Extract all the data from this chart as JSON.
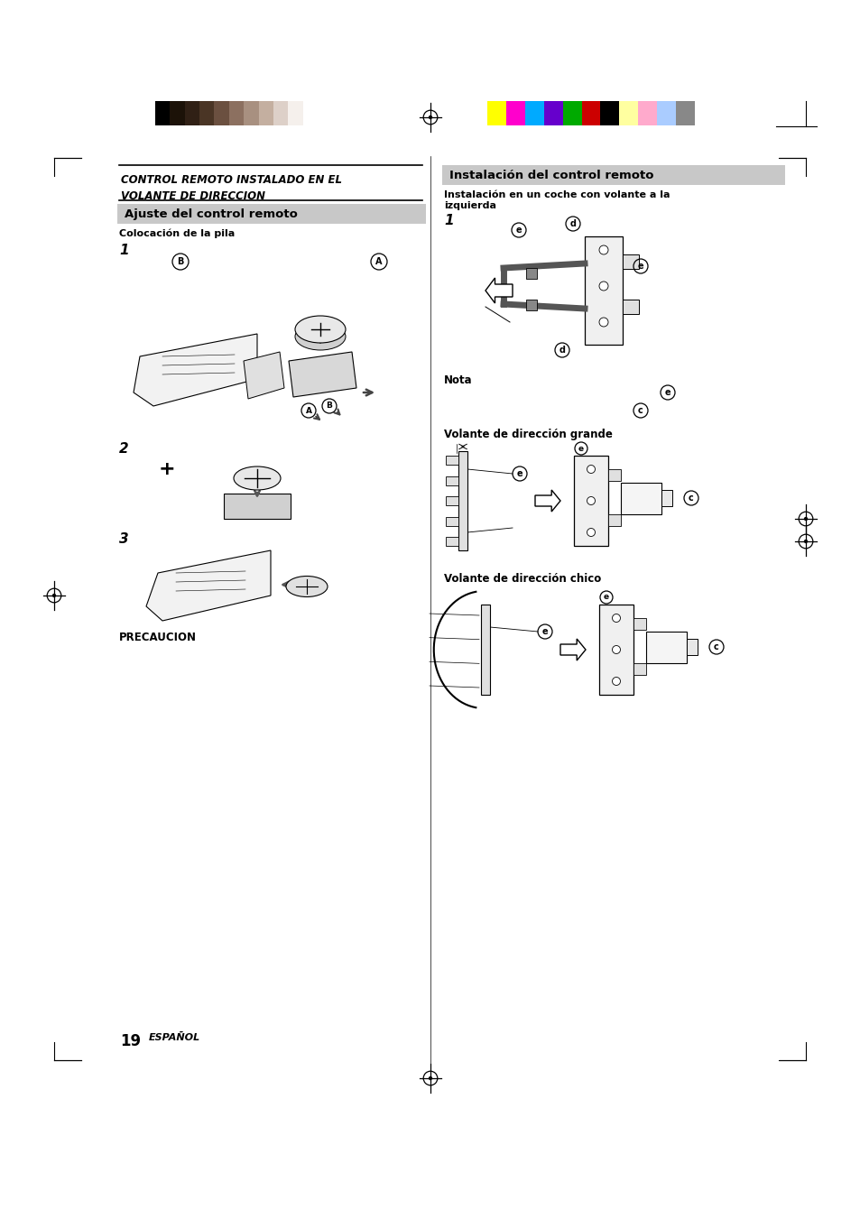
{
  "page_bg": "#ffffff",
  "figsize": [
    9.54,
    13.51
  ],
  "dpi": 100,
  "color_bars_left": [
    "#000000",
    "#1c1208",
    "#302015",
    "#4a3525",
    "#6b5040",
    "#8c7060",
    "#a89080",
    "#c4afa0",
    "#ddd0c8",
    "#f5f0ec",
    "#ffffff"
  ],
  "color_bars_right": [
    "#ffff00",
    "#ff00cc",
    "#00aaff",
    "#6600cc",
    "#00aa00",
    "#cc0000",
    "#000000",
    "#ffffa0",
    "#ffaacc",
    "#aaccff",
    "#888888"
  ],
  "title_left": "CONTROL REMOTO INSTALADO EN EL\nVOLANTE DE DIRECCION",
  "section_left": "Ajuste del control remoto",
  "subsect_left": "Colocación de la pila",
  "title_right": "Instalación del control remoto",
  "subsect_right_1": "Instalación en un coche con volante a la",
  "subsect_right_2": "izquierda",
  "nota_label": "Nota",
  "volante_grande": "Volante de dirección grande",
  "volante_chico": "Volante de dirección chico",
  "precaucion": "PRECAUCION",
  "page_number": "19",
  "espanol": "ESPAÑOL"
}
